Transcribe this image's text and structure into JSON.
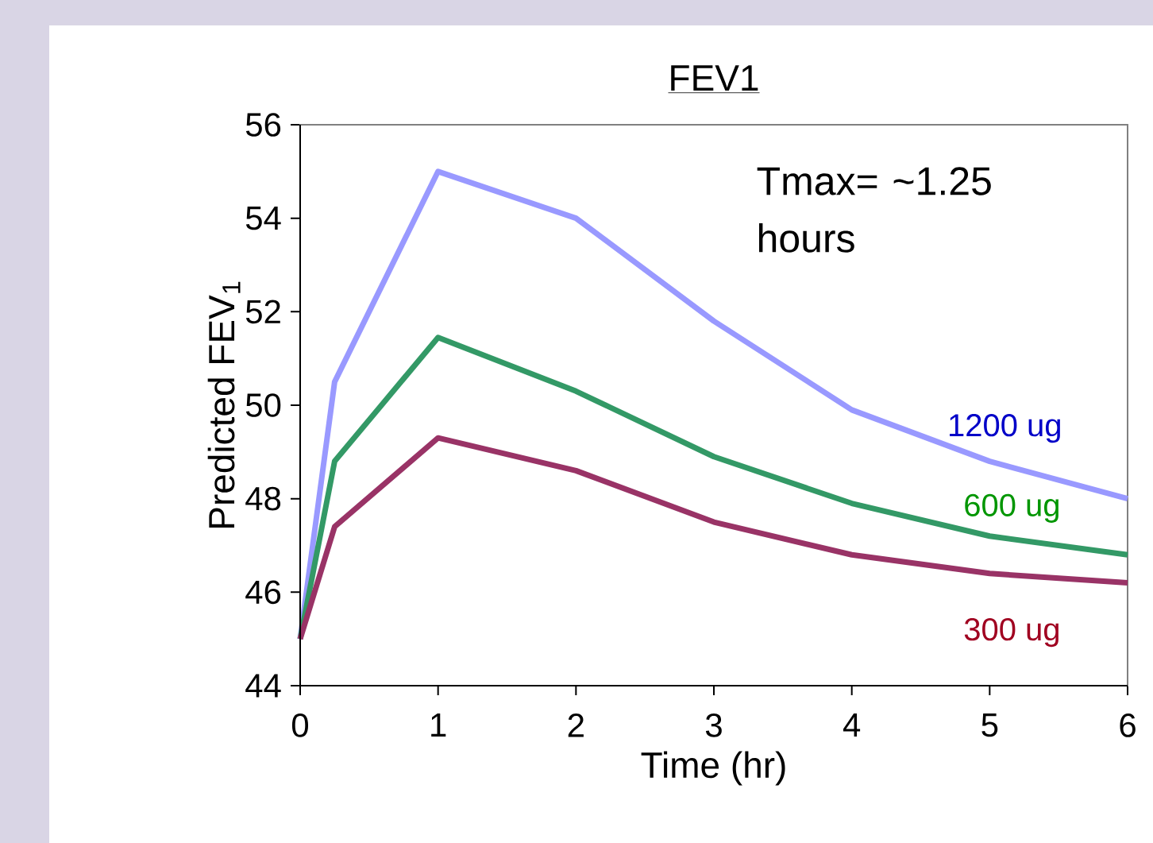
{
  "chart_data": {
    "type": "line",
    "title": "FEV1",
    "xlabel": "Time (hr)",
    "ylabel": "Predicted FEV$_{1}$",
    "x": [
      0,
      0.25,
      1,
      2,
      3,
      4,
      5,
      6
    ],
    "series": [
      {
        "name": "1200 ug",
        "color": "#9999ff",
        "values": [
          45,
          50.5,
          55,
          54,
          51.8,
          49.9,
          48.8,
          48
        ]
      },
      {
        "name": "600 ug",
        "color": "#339966",
        "values": [
          45,
          48.8,
          51.45,
          50.3,
          48.9,
          47.9,
          47.2,
          46.8
        ]
      },
      {
        "name": "300 ug",
        "color": "#993366",
        "values": [
          45,
          47.4,
          49.3,
          48.6,
          47.5,
          46.8,
          46.4,
          46.2
        ]
      }
    ],
    "xlim": [
      0,
      6
    ],
    "xticks": [
      0,
      1,
      2,
      3,
      4,
      5,
      6
    ],
    "ylim": [
      44,
      56
    ],
    "yticks": [
      44,
      46,
      48,
      50,
      52,
      54,
      56
    ],
    "grid": false,
    "legend": false,
    "marker": "none",
    "line_style": "solid",
    "annotations": [
      "Tmax= ~1.25 hours"
    ]
  }
}
